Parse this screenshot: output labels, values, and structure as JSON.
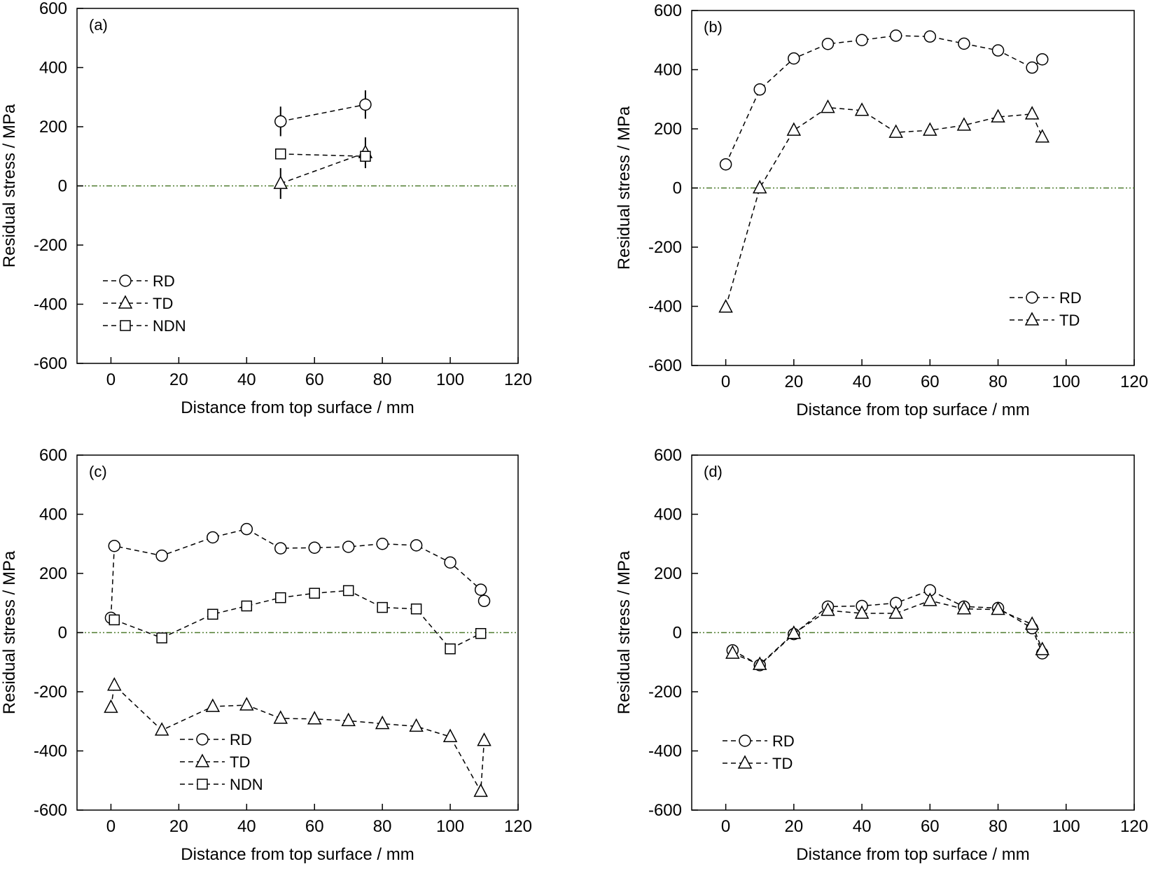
{
  "colors": {
    "zero_line": "#4e7a2e",
    "series": "#000000"
  },
  "chart_data": [
    {
      "type": "line",
      "panel_label": "(a)",
      "xlabel": "Distance from top surface / mm",
      "ylabel": "Residual stress / MPa",
      "xlim": [
        -10,
        120
      ],
      "ylim": [
        -600,
        600
      ],
      "x_ticks": [
        "0",
        "20",
        "40",
        "60",
        "80",
        "100",
        "120"
      ],
      "y_ticks": [
        "600",
        "400",
        "200",
        "0",
        "-200",
        "-400",
        "-600"
      ],
      "legend_position": "lower-left",
      "series": [
        {
          "name": "RD",
          "marker": "circle",
          "x": [
            50,
            75
          ],
          "y": [
            218,
            275
          ],
          "err": [
            50,
            48
          ]
        },
        {
          "name": "TD",
          "marker": "triangle",
          "x": [
            50,
            75
          ],
          "y": [
            8,
            112
          ],
          "err": [
            52,
            52
          ]
        },
        {
          "name": "NDN",
          "marker": "square",
          "x": [
            50,
            75
          ],
          "y": [
            108,
            100
          ],
          "err": [
            0,
            0
          ]
        }
      ]
    },
    {
      "type": "line",
      "panel_label": "(b)",
      "xlabel": "Distance from top surface / mm",
      "ylabel": "Residual stress / MPa",
      "xlim": [
        -10,
        120
      ],
      "ylim": [
        -600,
        600
      ],
      "x_ticks": [
        "0",
        "20",
        "40",
        "60",
        "80",
        "100",
        "120"
      ],
      "y_ticks": [
        "600",
        "400",
        "200",
        "0",
        "-200",
        "-400",
        "-600"
      ],
      "legend_position": "lower-right",
      "series": [
        {
          "name": "RD",
          "marker": "circle",
          "x": [
            0,
            10,
            20,
            30,
            40,
            50,
            60,
            70,
            80,
            90,
            93
          ],
          "y": [
            80,
            333,
            438,
            487,
            500,
            515,
            512,
            488,
            465,
            407,
            435
          ]
        },
        {
          "name": "TD",
          "marker": "triangle",
          "x": [
            0,
            10,
            20,
            30,
            40,
            50,
            60,
            70,
            80,
            90,
            93
          ],
          "y": [
            -403,
            0,
            195,
            272,
            262,
            188,
            195,
            212,
            240,
            250,
            172
          ]
        }
      ]
    },
    {
      "type": "line",
      "panel_label": "(c)",
      "xlabel": "Distance from top surface / mm",
      "ylabel": "Residual stress / MPa",
      "xlim": [
        -10,
        120
      ],
      "ylim": [
        -600,
        600
      ],
      "x_ticks": [
        "0",
        "20",
        "40",
        "60",
        "80",
        "100",
        "120"
      ],
      "y_ticks": [
        "600",
        "400",
        "200",
        "0",
        "-200",
        "-400",
        "-600"
      ],
      "legend_position": "lower-left",
      "series": [
        {
          "name": "RD",
          "marker": "circle",
          "x": [
            0,
            1,
            15,
            30,
            40,
            50,
            60,
            70,
            80,
            90,
            100,
            109,
            110
          ],
          "y": [
            50,
            293,
            260,
            322,
            350,
            285,
            287,
            290,
            300,
            295,
            237,
            145,
            107
          ]
        },
        {
          "name": "TD",
          "marker": "triangle",
          "x": [
            0,
            1,
            15,
            30,
            40,
            50,
            60,
            70,
            80,
            90,
            100,
            109,
            110
          ],
          "y": [
            -253,
            -178,
            -330,
            -250,
            -245,
            -290,
            -292,
            -298,
            -308,
            -317,
            -352,
            -537,
            -365
          ]
        },
        {
          "name": "NDN",
          "marker": "square",
          "x": [
            1,
            15,
            30,
            40,
            50,
            60,
            70,
            80,
            90,
            100,
            109
          ],
          "y": [
            43,
            -18,
            62,
            90,
            118,
            133,
            142,
            85,
            80,
            -55,
            -3
          ]
        }
      ]
    },
    {
      "type": "line",
      "panel_label": "(d)",
      "xlabel": "Distance from top surface / mm",
      "ylabel": "Residual stress / MPa",
      "xlim": [
        -10,
        120
      ],
      "ylim": [
        -600,
        600
      ],
      "x_ticks": [
        "0",
        "20",
        "40",
        "60",
        "80",
        "100",
        "120"
      ],
      "y_ticks": [
        "600",
        "400",
        "200",
        "0",
        "-200",
        "-400",
        "-600"
      ],
      "legend_position": "lower-left",
      "series": [
        {
          "name": "RD",
          "marker": "circle",
          "x": [
            2,
            10,
            20,
            30,
            40,
            50,
            60,
            70,
            80,
            90,
            93
          ],
          "y": [
            -60,
            -110,
            -5,
            88,
            90,
            100,
            143,
            88,
            83,
            15,
            -70
          ]
        },
        {
          "name": "TD",
          "marker": "triangle",
          "x": [
            2,
            10,
            20,
            30,
            40,
            50,
            60,
            70,
            80,
            90,
            93
          ],
          "y": [
            -70,
            -108,
            -3,
            75,
            65,
            65,
            108,
            80,
            78,
            28,
            -58
          ]
        }
      ]
    }
  ]
}
